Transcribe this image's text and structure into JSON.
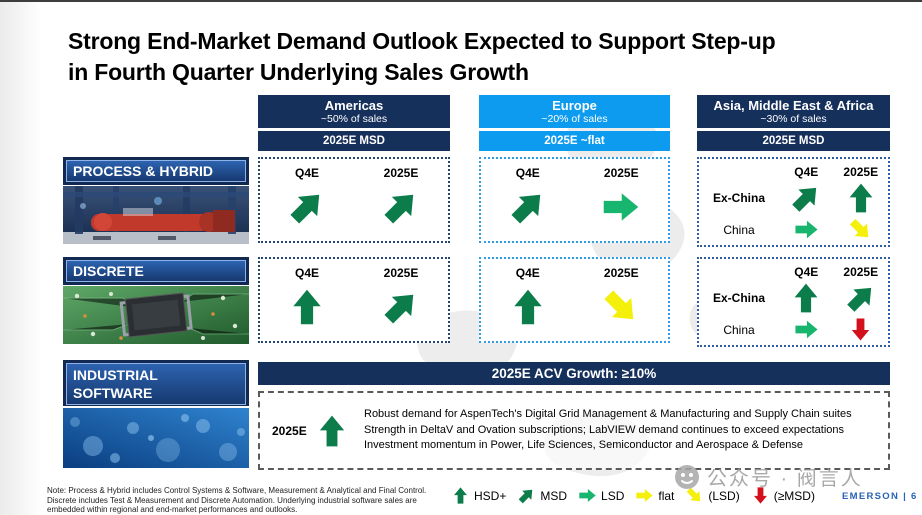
{
  "title_line1": "Strong End-Market Demand Outlook Expected to Support Step-up",
  "title_line2": "in Fourth Quarter Underlying Sales Growth",
  "labels": {
    "q4e": "Q4E",
    "y2025e": "2025E"
  },
  "regions": [
    {
      "name": "Americas",
      "share": "~50% of sales",
      "outlook": "2025E MSD"
    },
    {
      "name": "Europe",
      "share": "~20% of sales",
      "outlook": "2025E ~flat"
    },
    {
      "name": "Asia, Middle East & Africa",
      "share": "~30% of sales",
      "outlook": "2025E MSD"
    }
  ],
  "segments": [
    {
      "label": "PROCESS & HYBRID"
    },
    {
      "label": "DISCRETE"
    },
    {
      "label": "INDUSTRIAL SOFTWARE"
    }
  ],
  "asia": {
    "ex_china_label": "Ex-China",
    "china_label": "China"
  },
  "cells": {
    "process_hybrid": {
      "americas": {
        "q4e": "msd",
        "y2025e": "msd"
      },
      "europe": {
        "q4e": "msd",
        "y2025e": "lsd"
      },
      "asia": {
        "ex_china": {
          "q4e": "msd",
          "y2025e": "hsd"
        },
        "china": {
          "q4e": "lsd",
          "y2025e": "lsd_down"
        }
      }
    },
    "discrete": {
      "americas": {
        "q4e": "hsd",
        "y2025e": "msd"
      },
      "europe": {
        "q4e": "hsd",
        "y2025e": "lsd_down"
      },
      "asia": {
        "ex_china": {
          "q4e": "hsd",
          "y2025e": "msd"
        },
        "china": {
          "q4e": "lsd",
          "y2025e": "msd_down"
        }
      }
    }
  },
  "industrial_software": {
    "banner": "2025E ACV Growth: ≥10%",
    "period": "2025E",
    "arrow": "hsd",
    "bullets": [
      "Robust demand for AspenTech's Digital Grid Management & Manufacturing and Supply Chain suites",
      "Strength in DeltaV and Ovation subscriptions; LabVIEW demand continues to exceed expectations",
      "Investment momentum in Power, Life Sciences, Semiconductor and Aerospace & Defense"
    ]
  },
  "legend": [
    {
      "arrow": "hsd",
      "label": "HSD+"
    },
    {
      "arrow": "msd",
      "label": "MSD"
    },
    {
      "arrow": "lsd",
      "label": "LSD"
    },
    {
      "arrow": "flat",
      "label": "flat"
    },
    {
      "arrow": "lsd_down",
      "label": "(LSD)"
    },
    {
      "arrow": "msd_down",
      "label": "(≥MSD)"
    }
  ],
  "footnote": "Note: Process & Hybrid includes Control Systems & Software, Measurement & Analytical and Final Control. Discrete includes Test & Measurement and Discrete Automation. Underlying industrial software sales are embedded within regional and end-market performances and outlooks.",
  "brand": {
    "name": "EMERSON",
    "separator": "|",
    "page": "6"
  },
  "watermark": "公众号 · 阀言人",
  "colors": {
    "theme": {
      "navy": "#16305c",
      "blue": "#0d9bf0",
      "brand": "#2a62b4"
    },
    "arrows": {
      "hsd": "#0b7c4a",
      "msd": "#0b7c4a",
      "lsd": "#17b56d",
      "flat": "#f5ef0c",
      "lsd_down": "#f5ef0c",
      "msd_down": "#d2111c"
    }
  }
}
